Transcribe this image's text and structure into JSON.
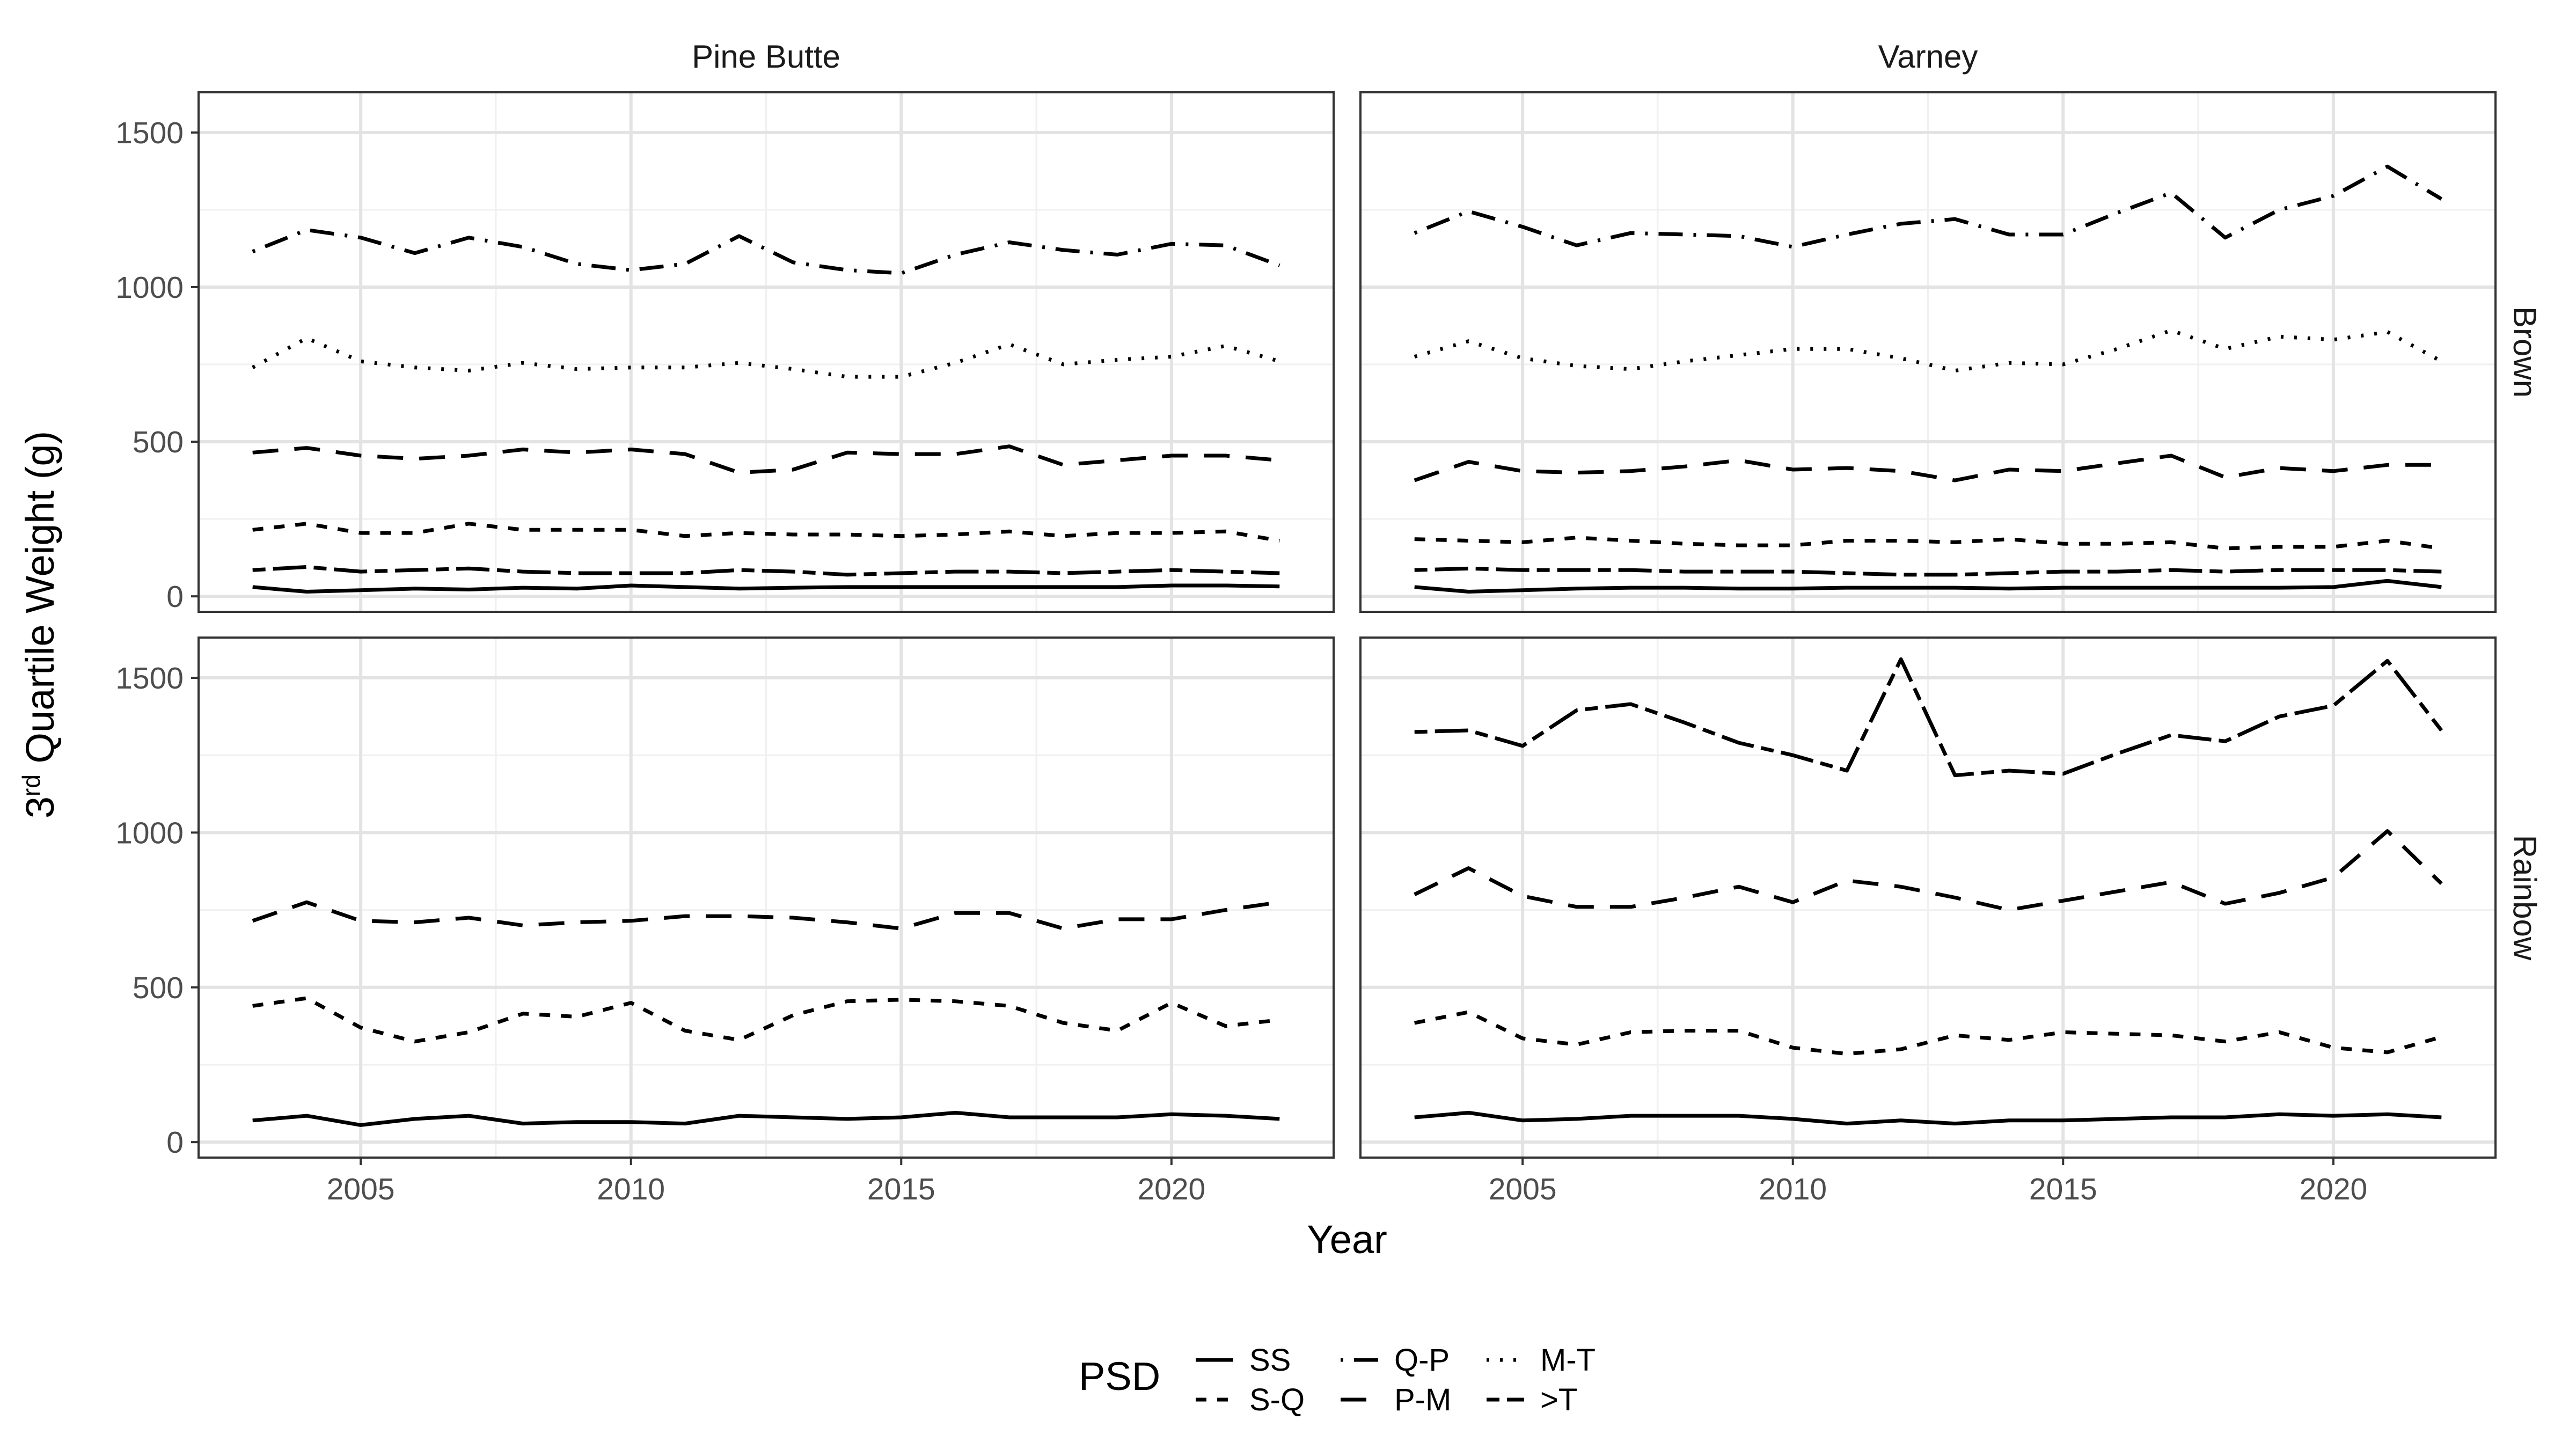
{
  "chart_data": {
    "type": "line",
    "xlabel": "Year",
    "ylabel": {
      "base": "3",
      "sup": "rd",
      "rest": " Quartile Weight (g)"
    },
    "x": [
      2003,
      2004,
      2005,
      2006,
      2007,
      2008,
      2009,
      2010,
      2011,
      2012,
      2013,
      2014,
      2015,
      2016,
      2017,
      2018,
      2019,
      2020,
      2021,
      2022
    ],
    "xlim": [
      2002,
      2023
    ],
    "ylim": [
      -50,
      1630
    ],
    "x_ticks": [
      "2005",
      "2010",
      "2015",
      "2020"
    ],
    "y_ticks": [
      "0",
      "500",
      "1000",
      "1500"
    ],
    "grid": true,
    "columns": [
      "Pine Butte",
      "Varney"
    ],
    "rows": [
      "Brown",
      "Rainbow"
    ],
    "legend": {
      "title": "PSD",
      "position": "bottom",
      "entries": [
        {
          "label": "SS",
          "dash": "solid"
        },
        {
          "label": "S-Q",
          "dash": "dashed"
        },
        {
          "label": "Q-P",
          "dash": "dotdash"
        },
        {
          "label": "P-M",
          "dash": "longdash"
        },
        {
          "label": "M-T",
          "dash": "dotted"
        },
        {
          "label": ">T",
          "dash": "twodash"
        }
      ]
    },
    "panels": [
      {
        "column": "Pine Butte",
        "row": "Brown",
        "series": [
          {
            "name": "SS",
            "values": [
              30,
              15,
              20,
              25,
              22,
              28,
              25,
              35,
              30,
              25,
              28,
              30,
              30,
              30,
              30,
              30,
              30,
              35,
              35,
              32
            ]
          },
          {
            "name": ">T",
            "values": [
              85,
              95,
              80,
              85,
              90,
              80,
              75,
              75,
              75,
              85,
              80,
              70,
              75,
              80,
              80,
              75,
              80,
              85,
              80,
              75
            ]
          },
          {
            "name": "S-Q",
            "values": [
              215,
              235,
              205,
              205,
              235,
              215,
              215,
              215,
              195,
              205,
              200,
              200,
              195,
              200,
              210,
              195,
              205,
              205,
              210,
              180
            ]
          },
          {
            "name": "P-M",
            "values": [
              465,
              480,
              455,
              445,
              455,
              475,
              465,
              475,
              460,
              400,
              410,
              465,
              460,
              460,
              485,
              425,
              440,
              455,
              455,
              440
            ]
          },
          {
            "name": "M-T",
            "values": [
              740,
              835,
              760,
              740,
              730,
              755,
              735,
              740,
              740,
              755,
              735,
              710,
              710,
              755,
              815,
              750,
              765,
              775,
              810,
              760
            ]
          },
          {
            "name": "Q-P",
            "values": [
              1115,
              1185,
              1160,
              1110,
              1160,
              1130,
              1075,
              1055,
              1075,
              1165,
              1080,
              1055,
              1045,
              1105,
              1145,
              1120,
              1105,
              1140,
              1135,
              1070
            ]
          }
        ]
      },
      {
        "column": "Varney",
        "row": "Brown",
        "series": [
          {
            "name": "SS",
            "values": [
              30,
              15,
              20,
              25,
              28,
              28,
              25,
              25,
              28,
              28,
              28,
              25,
              28,
              28,
              28,
              28,
              28,
              30,
              50,
              30
            ]
          },
          {
            "name": ">T",
            "values": [
              85,
              90,
              85,
              85,
              85,
              80,
              80,
              80,
              75,
              70,
              70,
              75,
              80,
              80,
              85,
              80,
              85,
              85,
              85,
              80
            ]
          },
          {
            "name": "S-Q",
            "values": [
              185,
              180,
              175,
              190,
              180,
              170,
              165,
              165,
              180,
              180,
              175,
              185,
              170,
              170,
              175,
              155,
              160,
              160,
              180,
              155
            ]
          },
          {
            "name": "P-M",
            "values": [
              375,
              435,
              405,
              400,
              405,
              420,
              440,
              410,
              415,
              405,
              375,
              410,
              405,
              430,
              455,
              385,
              415,
              405,
              425,
              425
            ]
          },
          {
            "name": "M-T",
            "values": [
              775,
              825,
              770,
              745,
              735,
              760,
              780,
              800,
              800,
              770,
              730,
              755,
              750,
              800,
              860,
              800,
              840,
              830,
              855,
              760
            ]
          },
          {
            "name": "Q-P",
            "values": [
              1175,
              1245,
              1195,
              1135,
              1175,
              1170,
              1165,
              1130,
              1170,
              1205,
              1220,
              1170,
              1170,
              1240,
              1305,
              1160,
              1250,
              1295,
              1390,
              1285
            ]
          }
        ]
      },
      {
        "column": "Pine Butte",
        "row": "Rainbow",
        "series": [
          {
            "name": "SS",
            "values": [
              70,
              85,
              55,
              75,
              85,
              60,
              65,
              65,
              60,
              85,
              80,
              75,
              80,
              95,
              80,
              80,
              80,
              90,
              85,
              75
            ]
          },
          {
            "name": "S-Q",
            "values": [
              440,
              465,
              370,
              325,
              355,
              415,
              405,
              450,
              360,
              330,
              410,
              455,
              460,
              455,
              440,
              385,
              360,
              450,
              375,
              395
            ]
          },
          {
            "name": "P-M",
            "values": [
              715,
              775,
              715,
              710,
              725,
              700,
              710,
              715,
              730,
              730,
              725,
              710,
              690,
              740,
              740,
              690,
              720,
              720,
              750,
              775
            ]
          }
        ]
      },
      {
        "column": "Varney",
        "row": "Rainbow",
        "series": [
          {
            "name": "SS",
            "values": [
              80,
              95,
              70,
              75,
              85,
              85,
              85,
              75,
              60,
              70,
              60,
              70,
              70,
              75,
              80,
              80,
              90,
              85,
              90,
              80
            ]
          },
          {
            "name": "S-Q",
            "values": [
              385,
              420,
              335,
              315,
              355,
              360,
              360,
              305,
              285,
              300,
              345,
              330,
              355,
              350,
              345,
              325,
              355,
              305,
              290,
              340
            ]
          },
          {
            "name": "P-M",
            "values": [
              800,
              885,
              795,
              760,
              760,
              790,
              825,
              775,
              845,
              825,
              790,
              750,
              780,
              810,
              840,
              770,
              805,
              855,
              1005,
              835
            ]
          },
          {
            "name": ">T",
            "values": [
              1325,
              1330,
              1280,
              1395,
              1415,
              1355,
              1290,
              1250,
              1200,
              1560,
              1185,
              1200,
              1190,
              1255,
              1315,
              1295,
              1375,
              1410,
              1555,
              1330
            ]
          }
        ]
      }
    ]
  }
}
